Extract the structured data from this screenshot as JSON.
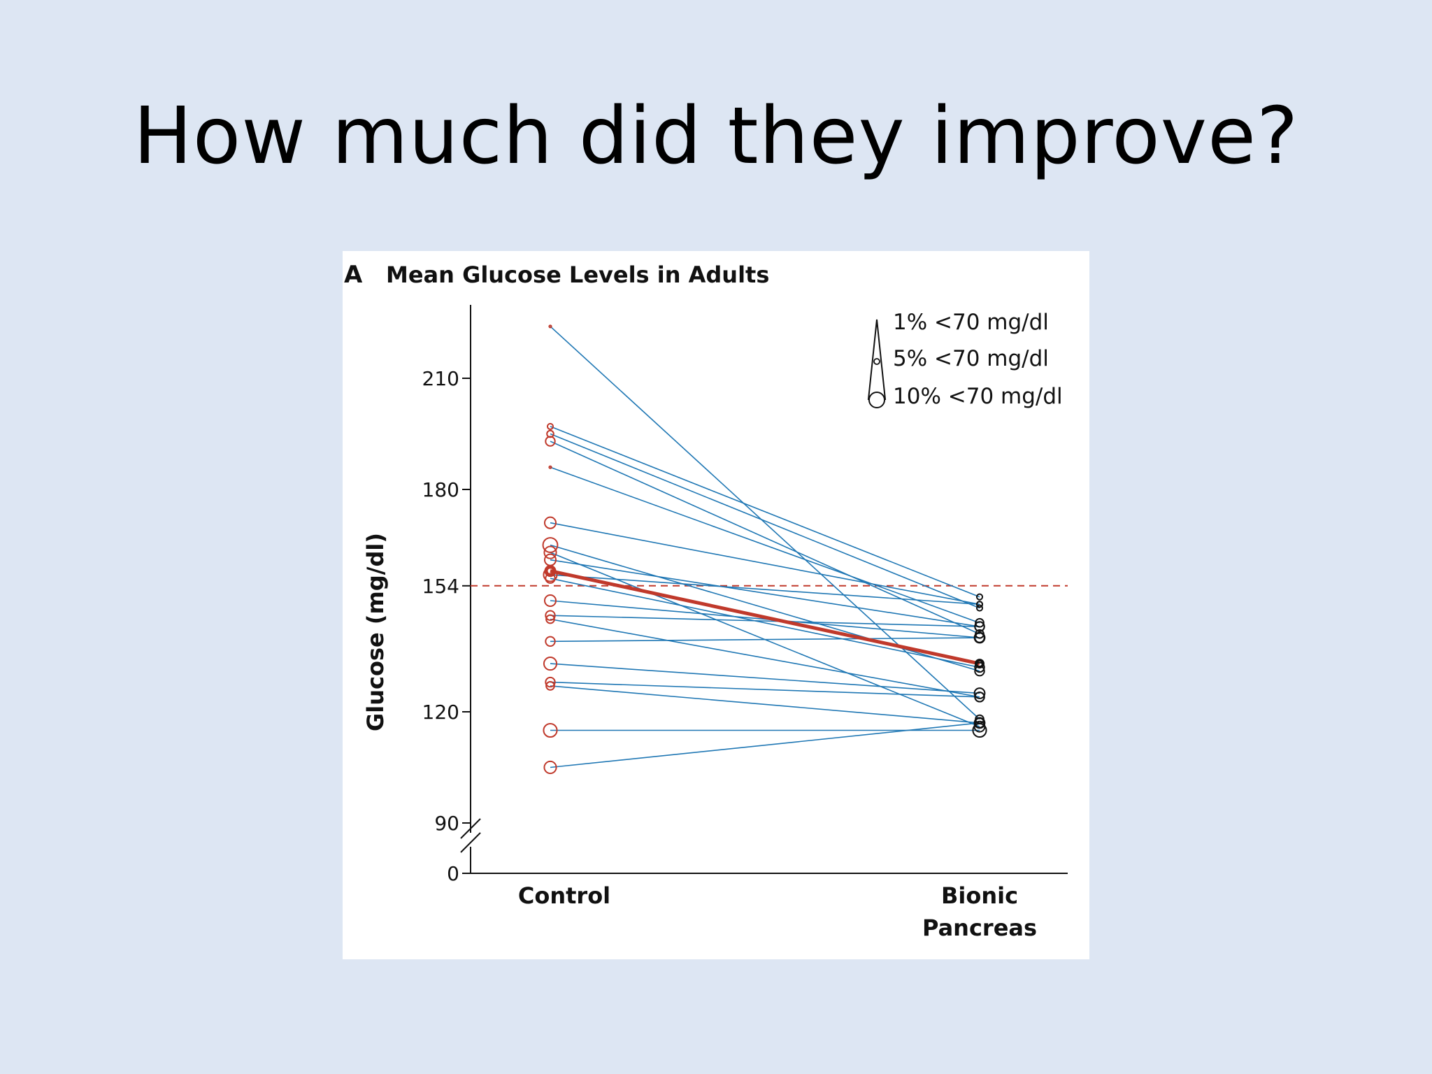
{
  "slide": {
    "title": "How much did they improve?"
  },
  "chart_data": {
    "type": "line",
    "panel_letter": "A",
    "title": "Mean Glucose Levels in Adults",
    "ylabel": "Glucose (mg/dl)",
    "xlabel": "",
    "categories": [
      "Control",
      "Bionic Pancreas"
    ],
    "category_labels": [
      [
        "Control"
      ],
      [
        "Bionic",
        "Pancreas"
      ]
    ],
    "ylim": [
      90,
      228
    ],
    "y_zero_label": "0",
    "yticks": [
      90,
      120,
      154,
      180,
      210
    ],
    "reference_line": {
      "value": 154,
      "style": "dashed",
      "color": "#c0392b"
    },
    "legend": {
      "placement": "top-right",
      "entries": [
        {
          "label": "1% <70 mg/dl",
          "percent": 1
        },
        {
          "label": "5% <70 mg/dl",
          "percent": 5
        },
        {
          "label": "10% <70 mg/dl",
          "percent": 10
        }
      ]
    },
    "series": [
      {
        "values": [
          224,
          118
        ],
        "pct_below_70": [
          0,
          2
        ]
      },
      {
        "values": [
          197,
          151
        ],
        "pct_below_70": [
          0.5,
          0.5
        ]
      },
      {
        "values": [
          195,
          148
        ],
        "pct_below_70": [
          1,
          0.5
        ]
      },
      {
        "values": [
          193,
          141
        ],
        "pct_below_70": [
          3,
          2
        ]
      },
      {
        "values": [
          186,
          144
        ],
        "pct_below_70": [
          0,
          2
        ]
      },
      {
        "values": [
          171,
          149
        ],
        "pct_below_70": [
          5,
          0.5
        ]
      },
      {
        "values": [
          165,
          131
        ],
        "pct_below_70": [
          10,
          3
        ]
      },
      {
        "values": [
          163,
          116
        ],
        "pct_below_70": [
          6,
          4
        ]
      },
      {
        "values": [
          161,
          143
        ],
        "pct_below_70": [
          5,
          3
        ]
      },
      {
        "values": [
          157,
          149
        ],
        "pct_below_70": [
          8,
          0.5
        ]
      },
      {
        "values": [
          156,
          132
        ],
        "pct_below_70": [
          3,
          3
        ]
      },
      {
        "values": [
          150,
          140
        ],
        "pct_below_70": [
          5,
          4
        ]
      },
      {
        "values": [
          146,
          143
        ],
        "pct_below_70": [
          3,
          3
        ]
      },
      {
        "values": [
          145,
          124
        ],
        "pct_below_70": [
          2,
          3
        ]
      },
      {
        "values": [
          139,
          140
        ],
        "pct_below_70": [
          3,
          3
        ]
      },
      {
        "values": [
          133,
          125
        ],
        "pct_below_70": [
          7,
          4
        ]
      },
      {
        "values": [
          128,
          124
        ],
        "pct_below_70": [
          3,
          3
        ]
      },
      {
        "values": [
          127,
          117
        ],
        "pct_below_70": [
          2,
          3
        ]
      },
      {
        "values": [
          115,
          115
        ],
        "pct_below_70": [
          8,
          8
        ]
      },
      {
        "values": [
          105,
          117
        ],
        "pct_below_70": [
          6,
          4
        ]
      }
    ],
    "mean_series": {
      "values": [
        158,
        133
      ],
      "color": "#c0392b"
    },
    "colors": {
      "control_points": "#c0392b",
      "pancreas_points": "#111111",
      "lines": "#1f77b4",
      "mean": "#c0392b"
    }
  }
}
